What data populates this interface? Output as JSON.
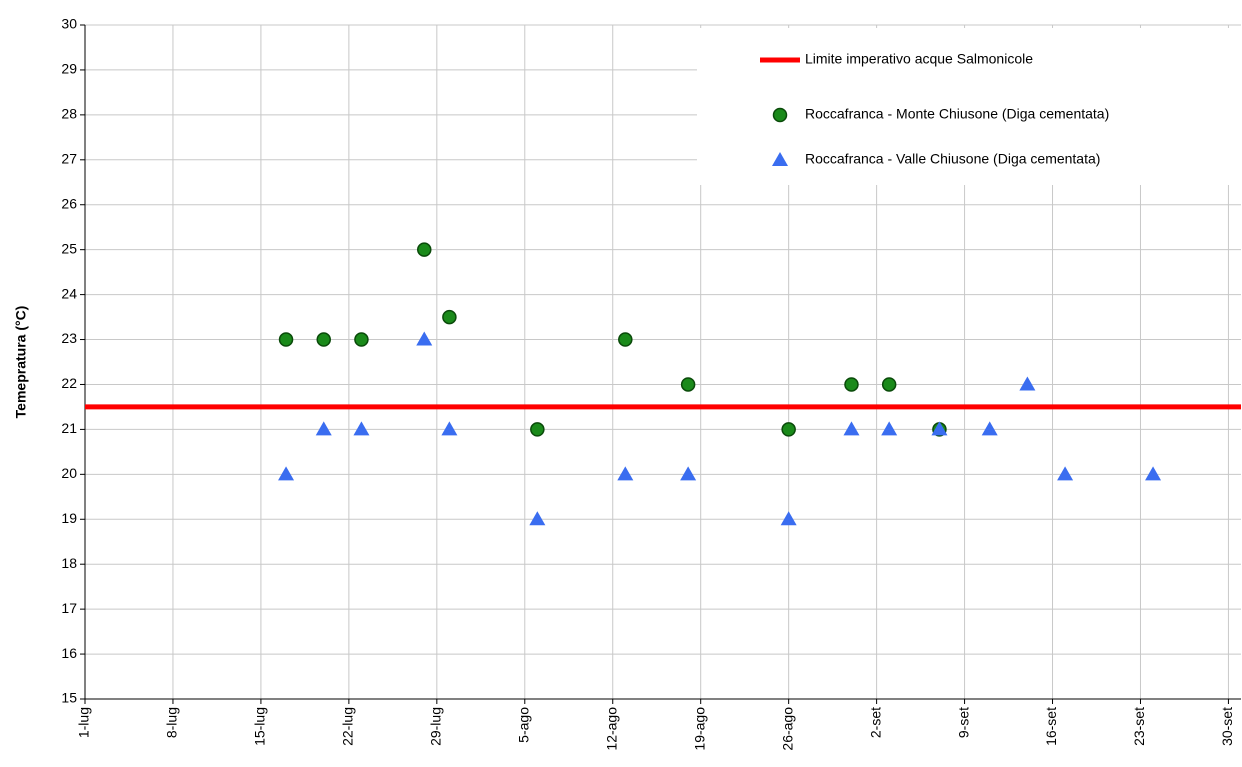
{
  "chart_data": {
    "type": "scatter",
    "ylabel": "Temepratura (°C)",
    "xlim": [
      0,
      92
    ],
    "ylim": [
      15,
      30
    ],
    "xticks": [
      {
        "value": 0,
        "label": "1-lug"
      },
      {
        "value": 7,
        "label": "8-lug"
      },
      {
        "value": 14,
        "label": "15-lug"
      },
      {
        "value": 21,
        "label": "22-lug"
      },
      {
        "value": 28,
        "label": "29-lug"
      },
      {
        "value": 35,
        "label": "5-ago"
      },
      {
        "value": 42,
        "label": "12-ago"
      },
      {
        "value": 49,
        "label": "19-ago"
      },
      {
        "value": 56,
        "label": "26-ago"
      },
      {
        "value": 63,
        "label": "2-set"
      },
      {
        "value": 70,
        "label": "9-set"
      },
      {
        "value": 77,
        "label": "16-set"
      },
      {
        "value": 84,
        "label": "23-set"
      },
      {
        "value": 91,
        "label": "30-set"
      }
    ],
    "yticks": [
      15,
      16,
      17,
      18,
      19,
      20,
      21,
      22,
      23,
      24,
      25,
      26,
      27,
      28,
      29,
      30
    ],
    "grid": true,
    "hline": {
      "name": "Limite imperativo acque Salmonicole",
      "value": 21.5,
      "color": "#ff0000"
    },
    "series": [
      {
        "name": "Roccafranca - Monte Chiusone (Diga cementata)",
        "color": "#1a8a1a",
        "marker": "circle",
        "x": [
          16,
          19,
          22,
          27,
          29,
          36,
          43,
          48,
          56,
          61,
          64,
          68
        ],
        "values": [
          23,
          23,
          23,
          25,
          23.5,
          21,
          23,
          22,
          21,
          22,
          22,
          21
        ]
      },
      {
        "name": "Roccafranca - Valle Chiusone (Diga cementata)",
        "color": "#3a6df0",
        "marker": "triangle",
        "x": [
          16,
          19,
          22,
          27,
          29,
          36,
          43,
          48,
          56,
          61,
          64,
          68,
          72,
          75,
          78,
          85
        ],
        "values": [
          20,
          21,
          21,
          23,
          21,
          19,
          20,
          20,
          19,
          21,
          21,
          21,
          21,
          22,
          20,
          20
        ]
      }
    ]
  }
}
